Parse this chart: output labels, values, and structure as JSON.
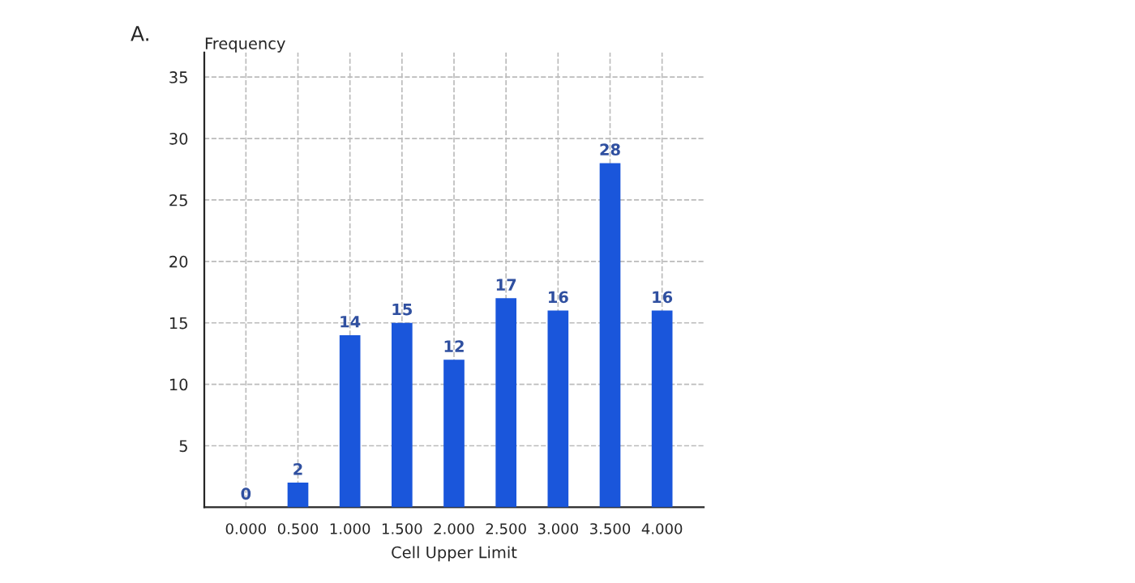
{
  "chart_data": {
    "type": "bar",
    "title": "A.",
    "xlabel": "Cell Upper Limit",
    "ylabel": "Frequency",
    "categories": [
      "0.000",
      "0.500",
      "1.000",
      "1.500",
      "2.000",
      "2.500",
      "3.000",
      "3.500",
      "4.000"
    ],
    "values": [
      0,
      2,
      14,
      15,
      12,
      17,
      16,
      28,
      16
    ],
    "color": "#1a56db",
    "ylim": [
      0,
      37
    ],
    "yticks": [
      5,
      10,
      15,
      20,
      25,
      30,
      35
    ],
    "grid": true,
    "data_labels": true
  }
}
